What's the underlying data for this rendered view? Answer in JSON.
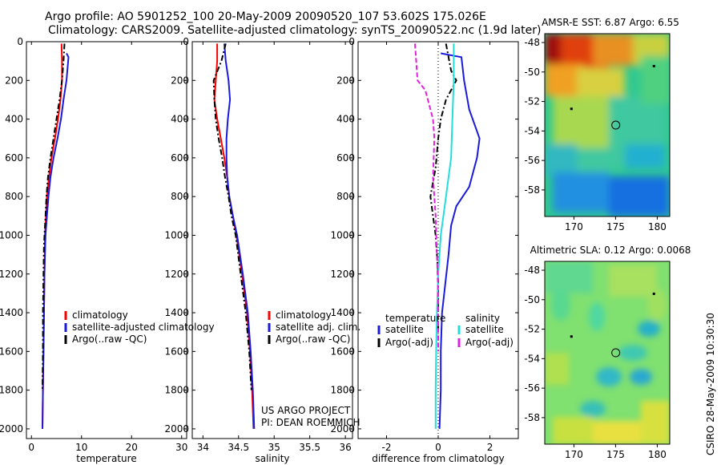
{
  "header": {
    "title_line1": "Argo profile: AO 5901252_100 20-May-2009 20090520_107 53.602S 175.026E",
    "title_line2": "Climatology: CARS2009. Satellite-adjusted climatology: synTS_20090522.nc (1.9d later)"
  },
  "stamp": "CSIRO 28-May-2009 10:30:30",
  "colors": {
    "climatology": "#ff0000",
    "satellite": "#1a1add",
    "argo": "#000000",
    "satellite_salinity": "#22dddd",
    "argo_salinity": "#dd22dd"
  },
  "chart_data": [
    {
      "type": "line",
      "id": "temperature",
      "xlabel": "temperature",
      "ylabel": "",
      "xlim": [
        -1,
        31
      ],
      "ylim": [
        2050,
        0
      ],
      "xticks": [
        0,
        10,
        20,
        30
      ],
      "yticks": [
        0,
        200,
        400,
        600,
        800,
        1000,
        1200,
        1400,
        1600,
        1800,
        2000
      ],
      "grid": false,
      "legend_position": "lower-center",
      "legend": [
        "climatology",
        "satellite-adjusted climatology",
        "Argo(..raw -QC)"
      ],
      "series": [
        {
          "name": "climatology",
          "color": "#ff0000",
          "dash": "solid",
          "x": [
            6.0,
            6.1,
            6.1,
            5.8,
            5.3,
            4.7,
            4.0,
            3.5,
            3.1,
            2.9,
            2.7,
            2.6,
            2.5,
            2.4,
            2.3,
            2.2
          ],
          "y": [
            10,
            100,
            200,
            300,
            400,
            500,
            600,
            700,
            800,
            900,
            1000,
            1200,
            1400,
            1600,
            1800,
            2000
          ]
        },
        {
          "name": "satellite-adjusted climatology",
          "color": "#1a1add",
          "dash": "solid",
          "x": [
            7.0,
            7.4,
            7.0,
            6.4,
            5.9,
            5.2,
            4.4,
            3.8,
            3.4,
            3.1,
            2.8,
            2.6,
            2.5,
            2.4,
            2.3,
            2.2
          ],
          "y": [
            60,
            80,
            200,
            300,
            400,
            500,
            600,
            700,
            800,
            900,
            1000,
            1200,
            1400,
            1600,
            1800,
            2000
          ]
        },
        {
          "name": "Argo(..raw -QC)",
          "color": "#000000",
          "dash": "dashdot",
          "x": [
            6.6,
            6.4,
            6.1,
            5.6,
            5.0,
            4.4,
            3.8,
            3.3,
            3.0,
            2.8,
            2.5,
            2.4,
            2.3,
            2.3,
            2.2
          ],
          "y": [
            10,
            100,
            200,
            300,
            400,
            500,
            600,
            700,
            800,
            900,
            1050,
            1200,
            1400,
            1600,
            1800
          ]
        }
      ]
    },
    {
      "type": "line",
      "id": "salinity",
      "xlabel": "salinity",
      "ylabel": "",
      "xlim": [
        33.85,
        36.1
      ],
      "ylim": [
        2050,
        0
      ],
      "xticks": [
        34,
        34.5,
        35,
        35.5,
        36
      ],
      "yticks": [
        0,
        200,
        400,
        600,
        800,
        1000,
        1200,
        1400,
        1600,
        1800,
        2000
      ],
      "grid": false,
      "legend_position": "lower-center",
      "legend": [
        "climatology",
        "satellite adj. clim.",
        "Argo(..raw -QC)"
      ],
      "annotation": [
        "US ARGO PROJECT",
        "PI: DEAN ROEMMICH"
      ],
      "series": [
        {
          "name": "climatology",
          "color": "#ff0000",
          "dash": "solid",
          "x": [
            34.2,
            34.2,
            34.18,
            34.16,
            34.2,
            34.25,
            34.3,
            34.34,
            34.37,
            34.42,
            34.47,
            34.55,
            34.62,
            34.66,
            34.69,
            34.71
          ],
          "y": [
            10,
            100,
            200,
            300,
            400,
            500,
            600,
            700,
            800,
            900,
            1000,
            1200,
            1400,
            1600,
            1800,
            2000
          ]
        },
        {
          "name": "satellite adj. clim.",
          "color": "#1a1add",
          "dash": "solid",
          "x": [
            34.3,
            34.32,
            34.36,
            34.38,
            34.35,
            34.33,
            34.33,
            34.34,
            34.37,
            34.42,
            34.48,
            34.56,
            34.63,
            34.67,
            34.7,
            34.72
          ],
          "y": [
            10,
            100,
            200,
            300,
            400,
            500,
            600,
            700,
            800,
            900,
            1000,
            1200,
            1400,
            1600,
            1800,
            2000
          ]
        },
        {
          "name": "Argo(..raw -QC)",
          "color": "#000000",
          "dash": "dashdot",
          "x": [
            34.32,
            34.26,
            34.15,
            34.16,
            34.18,
            34.22,
            34.27,
            34.31,
            34.36,
            34.4,
            34.46,
            34.53,
            34.6,
            34.65,
            34.68
          ],
          "y": [
            10,
            100,
            200,
            300,
            400,
            500,
            600,
            700,
            800,
            900,
            1000,
            1200,
            1400,
            1600,
            1800
          ]
        }
      ]
    },
    {
      "type": "line",
      "id": "difference",
      "xlabel": "difference from climatology",
      "ylabel": "",
      "xlim": [
        -3.1,
        3.1
      ],
      "ylim": [
        2050,
        0
      ],
      "xticks": [
        -2,
        0,
        2
      ],
      "yticks": [
        0,
        200,
        400,
        600,
        800,
        1000,
        1200,
        1400,
        1600,
        1800,
        2000
      ],
      "grid": false,
      "zero_line": true,
      "legend_position": "lower-center",
      "legend_headers": [
        "temperature",
        "salinity"
      ],
      "legend": [
        "satellite",
        "Argo(-adj)",
        "satellite",
        "Argo(-adj)"
      ],
      "series": [
        {
          "name": "temperature satellite",
          "color": "#1a1add",
          "dash": "solid",
          "x": [
            0.1,
            0.9,
            1.0,
            1.2,
            1.6,
            1.5,
            1.2,
            0.7,
            0.5,
            0.4,
            0.15,
            0.1,
            0.1,
            0.05
          ],
          "y": [
            60,
            80,
            200,
            350,
            500,
            600,
            750,
            850,
            950,
            1100,
            1400,
            1600,
            1800,
            2000
          ]
        },
        {
          "name": "temperature Argo(-adj)",
          "color": "#000000",
          "dash": "dashdot",
          "x": [
            0.3,
            0.5,
            0.7,
            0.3,
            0.1,
            0.0,
            -0.1,
            -0.3,
            -0.2,
            -0.1,
            0.0,
            0.0
          ],
          "y": [
            10,
            150,
            200,
            300,
            400,
            500,
            650,
            800,
            900,
            1000,
            1200,
            1500
          ]
        },
        {
          "name": "salinity satellite",
          "color": "#22dddd",
          "dash": "solid",
          "x": [
            0.6,
            0.6,
            0.55,
            0.5,
            0.4,
            0.3,
            0.2,
            0.1,
            0.0,
            -0.05,
            -0.08,
            -0.1,
            -0.1
          ],
          "y": [
            10,
            200,
            400,
            600,
            700,
            800,
            900,
            1000,
            1200,
            1400,
            1600,
            1800,
            2000
          ]
        },
        {
          "name": "salinity Argo(-adj)",
          "color": "#dd22dd",
          "dash": "dashed",
          "x": [
            -0.9,
            -0.8,
            -0.5,
            -0.2,
            -0.15,
            -0.2,
            -0.1,
            -0.05,
            0.0,
            0.0
          ],
          "y": [
            10,
            200,
            250,
            400,
            500,
            700,
            900,
            1100,
            1300,
            1600
          ]
        }
      ]
    },
    {
      "type": "heatmap",
      "id": "sst_map",
      "title": "AMSR-E SST: 6.87  Argo: 6.55",
      "xlim": [
        166.5,
        181.5
      ],
      "ylim": [
        -59.8,
        -47.4
      ],
      "xticks": [
        170,
        175,
        180
      ],
      "yticks": [
        -48,
        -50,
        -52,
        -54,
        -56,
        -58
      ],
      "float_position": {
        "lon": 175.026,
        "lat": -53.602
      },
      "dots": [
        {
          "lon": 169.7,
          "lat": -52.5
        },
        {
          "lon": 179.6,
          "lat": -49.6
        }
      ]
    },
    {
      "type": "heatmap",
      "id": "sla_map",
      "title": "Altimetric SLA: 0.12  Argo: 0.0068",
      "xlim": [
        166.5,
        181.5
      ],
      "ylim": [
        -59.8,
        -47.4
      ],
      "xticks": [
        170,
        175,
        180
      ],
      "yticks": [
        -48,
        -50,
        -52,
        -54,
        -56,
        -58
      ],
      "float_position": {
        "lon": 175.026,
        "lat": -53.602
      },
      "dots": [
        {
          "lon": 169.7,
          "lat": -52.5
        },
        {
          "lon": 179.6,
          "lat": -49.6
        }
      ]
    }
  ]
}
